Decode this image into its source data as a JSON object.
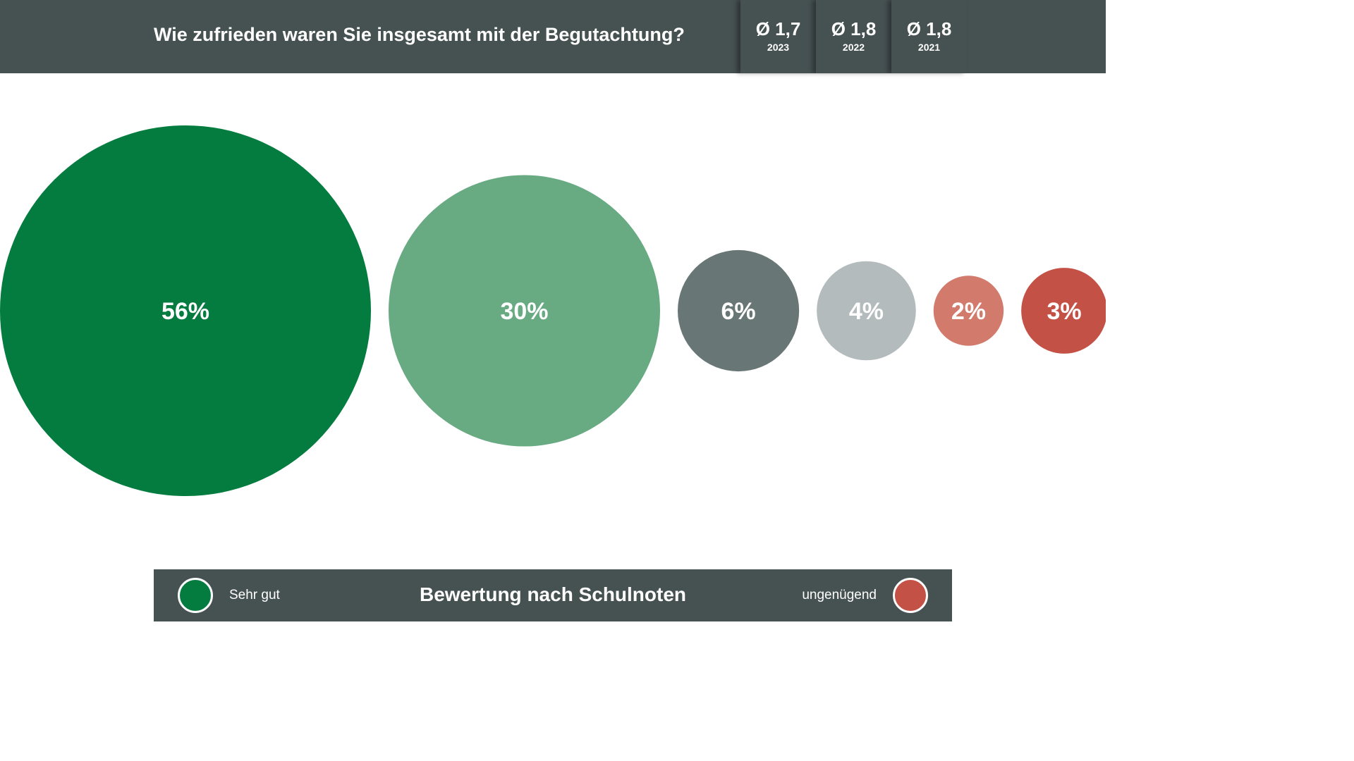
{
  "header": {
    "question": "Wie zufrieden waren Sie insgesamt mit der Begutachtung?",
    "averages": [
      {
        "value": "Ø 1,7",
        "year": "2023"
      },
      {
        "value": "Ø 1,8",
        "year": "2022"
      },
      {
        "value": "Ø 1,8",
        "year": "2021"
      }
    ]
  },
  "chart_data": {
    "type": "bubble",
    "title": "Wie zufrieden waren Sie insgesamt mit der Begutachtung?",
    "unit": "%",
    "values": [
      56,
      30,
      6,
      4,
      2,
      3
    ],
    "labels": [
      "56%",
      "30%",
      "6%",
      "4%",
      "2%",
      "3%"
    ],
    "colors": [
      "#047c3f",
      "#68ab83",
      "#687676",
      "#b4bbbc",
      "#d27b6d",
      "#c45146"
    ],
    "scale_from": "Sehr gut",
    "scale_to": "ungenügend"
  },
  "legend": {
    "title": "Bewertung nach Schulnoten",
    "low_label": "Sehr gut",
    "high_label": "ungenügend",
    "low_color": "#047c3f",
    "high_color": "#c45146"
  }
}
